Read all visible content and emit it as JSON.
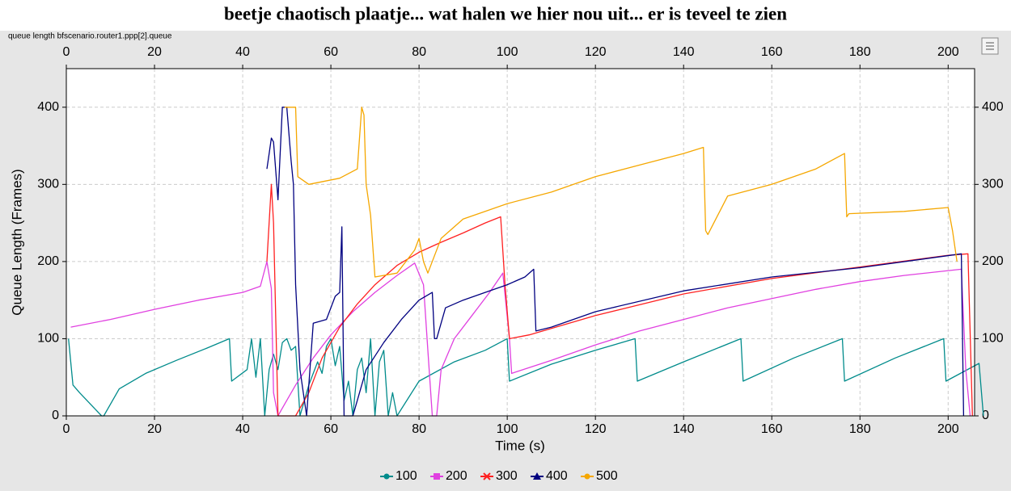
{
  "chart_data": {
    "type": "line",
    "title": "beetje chaotisch plaatje... wat halen we hier nou uit... er is teveel te zien",
    "subtitle": "queue length bfscenario.router1.ppp[2].queue",
    "x_label": "Time (s)",
    "y_label": "Queue Length (Frames)",
    "xlim": [
      0,
      206
    ],
    "ylim": [
      0,
      450
    ],
    "xticks": [
      0,
      20,
      40,
      60,
      80,
      100,
      120,
      140,
      160,
      180,
      200
    ],
    "yticks": [
      0,
      100,
      200,
      300,
      400
    ],
    "grid": true,
    "legend": "bottom",
    "series": [
      {
        "name": "100",
        "color": "#008b8b",
        "x": [
          0.5,
          1.5,
          3,
          8,
          8.5,
          12,
          18,
          25,
          32,
          37,
          37.5,
          41,
          42,
          43,
          44,
          45,
          46,
          47,
          48,
          49,
          50,
          51,
          52,
          53,
          55,
          57,
          58,
          59,
          60,
          61,
          62,
          63,
          64,
          65,
          66,
          67,
          68,
          69,
          70,
          71,
          72,
          73,
          74,
          75,
          80,
          88,
          95,
          100,
          100.5,
          110,
          120,
          129,
          129.5,
          140,
          153,
          153.5,
          165,
          176,
          176.5,
          188,
          199,
          199.5,
          207,
          208
        ],
        "values": [
          100,
          40,
          30,
          0,
          0,
          35,
          55,
          72,
          88,
          100,
          45,
          60,
          100,
          50,
          100,
          0,
          60,
          80,
          60,
          95,
          100,
          85,
          90,
          0,
          40,
          70,
          55,
          90,
          100,
          65,
          90,
          20,
          45,
          0,
          60,
          75,
          30,
          100,
          0,
          70,
          85,
          0,
          30,
          0,
          45,
          70,
          85,
          100,
          45,
          67,
          85,
          100,
          45,
          70,
          100,
          45,
          75,
          100,
          45,
          75,
          100,
          45,
          68,
          0
        ]
      },
      {
        "name": "200",
        "color": "#e040e0",
        "x": [
          1,
          10,
          20,
          30,
          40,
          44,
          45.5,
          46.5,
          47,
          48,
          49,
          52,
          56,
          60,
          65,
          70,
          75,
          79,
          81,
          82,
          83,
          84,
          85,
          88,
          92,
          96,
          99,
          100.5,
          101,
          110,
          120,
          130,
          140,
          150,
          160,
          170,
          180,
          190,
          203,
          204,
          205
        ],
        "values": [
          115,
          125,
          138,
          150,
          160,
          168,
          200,
          165,
          30,
          0,
          10,
          40,
          75,
          105,
          135,
          160,
          182,
          198,
          170,
          85,
          0,
          0,
          60,
          100,
          130,
          160,
          185,
          100,
          55,
          72,
          92,
          110,
          125,
          140,
          152,
          164,
          174,
          182,
          190,
          60,
          0
        ]
      },
      {
        "name": "300",
        "color": "#ff2020",
        "x": [
          45.5,
          46.5,
          47,
          48,
          49,
          50,
          52,
          53,
          55,
          58,
          62,
          66,
          70,
          75,
          80,
          85,
          90,
          95,
          98.5,
          99.5,
          100.5,
          105,
          120,
          140,
          160,
          180,
          200,
          204.5,
          205.5
        ],
        "values": [
          200,
          300,
          250,
          0,
          0,
          0,
          0,
          10,
          30,
          75,
          115,
          145,
          170,
          195,
          212,
          225,
          237,
          250,
          258,
          170,
          100,
          105,
          130,
          158,
          178,
          193,
          208,
          210,
          0
        ]
      },
      {
        "name": "400",
        "color": "#000080",
        "x": [
          45.5,
          46,
          46.5,
          47,
          48,
          49,
          50,
          51,
          51.5,
          52,
          53,
          54.5,
          56,
          59,
          61,
          62,
          62.5,
          63,
          64,
          65,
          68,
          72,
          76,
          80,
          83,
          83.5,
          84,
          86,
          90,
          95,
          100,
          104,
          106,
          106.5,
          110,
          120,
          140,
          160,
          180,
          203,
          203.5
        ],
        "values": [
          320,
          340,
          360,
          355,
          280,
          400,
          400,
          330,
          300,
          170,
          60,
          0,
          120,
          125,
          155,
          160,
          245,
          0,
          0,
          0,
          60,
          95,
          125,
          150,
          160,
          100,
          100,
          140,
          150,
          160,
          170,
          180,
          190,
          110,
          115,
          135,
          162,
          180,
          192,
          210,
          0
        ]
      },
      {
        "name": "500",
        "color": "#f5a700",
        "x": [
          49.5,
          52,
          52.5,
          55,
          62,
          66,
          67,
          67.5,
          68,
          69,
          70,
          75,
          79,
          80,
          81,
          82,
          85,
          90,
          95,
          100,
          110,
          120,
          130,
          140,
          144.5,
          145,
          145.5,
          150,
          160,
          170,
          176.5,
          177,
          177.5,
          190,
          200,
          201,
          202
        ],
        "values": [
          400,
          400,
          310,
          300,
          308,
          320,
          400,
          390,
          300,
          260,
          180,
          185,
          215,
          230,
          200,
          185,
          230,
          255,
          265,
          275,
          290,
          310,
          325,
          340,
          348,
          240,
          235,
          285,
          300,
          320,
          340,
          258,
          262,
          265,
          270,
          240,
          200
        ]
      }
    ]
  }
}
